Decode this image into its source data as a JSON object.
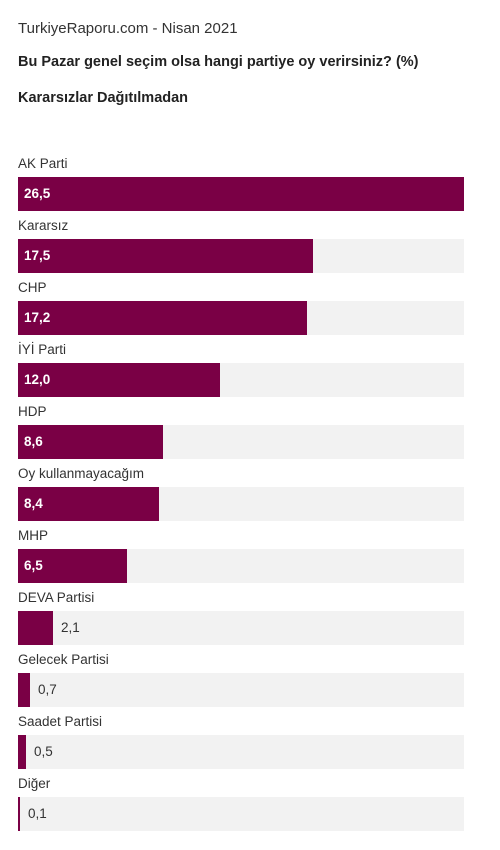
{
  "header": {
    "source": "TurkiyeRaporu.com - Nisan 2021",
    "title": "Bu Pazar genel seçim olsa hangi partiye oy verirsiniz? (%)",
    "subtitle": "Kararsızlar Dağıtılmadan"
  },
  "colors": {
    "bar": "#7a0045",
    "track": "#f2f2f2"
  },
  "chart_data": {
    "type": "bar",
    "orientation": "horizontal",
    "title": "Bu Pazar genel seçim olsa hangi partiye oy verirsiniz? (%)",
    "subtitle": "Kararsızlar Dağıtılmadan",
    "categories": [
      "AK Parti",
      "Kararsız",
      "CHP",
      "İYİ Parti",
      "HDP",
      "Oy kullanmayacağım",
      "MHP",
      "DEVA Partisi",
      "Gelecek Partisi",
      "Saadet Partisi",
      "Diğer"
    ],
    "values": [
      26.5,
      17.5,
      17.2,
      12.0,
      8.6,
      8.4,
      6.5,
      2.1,
      0.7,
      0.5,
      0.1
    ],
    "value_labels": [
      "26,5",
      "17,5",
      "17,2",
      "12,0",
      "8,6",
      "8,4",
      "6,5",
      "2,1",
      "0,7",
      "0,5",
      "0,1"
    ],
    "xlim": [
      0,
      26.5
    ],
    "grid": false,
    "legend": "none"
  }
}
